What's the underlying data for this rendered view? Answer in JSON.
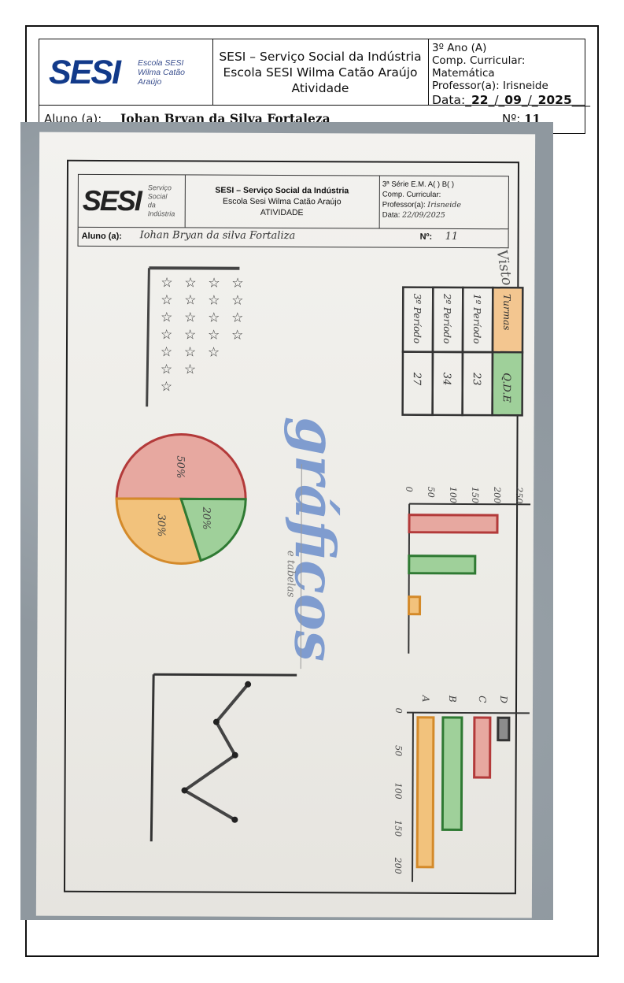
{
  "header": {
    "logo_text": "SESI",
    "logo_sub": [
      "Escola SESI",
      "Wilma Catão",
      "Araújo"
    ],
    "title_lines": [
      "SESI – Serviço Social da Indústria",
      "Escola SESI Wilma Catão Araújo",
      "Atividade"
    ],
    "info": {
      "grade": "3º Ano (A)",
      "subject": "Comp. Curricular: Matemática",
      "teacher": "Professor(a):  Irisneide",
      "date_label": "Data:",
      "date_day": "22",
      "date_month": "09",
      "date_year": "2025"
    }
  },
  "student": {
    "label": "Aluno (a):",
    "name": "Iohan Bryan da Silva Fortaleza",
    "number_label": "Nº:",
    "number": "11"
  },
  "photo": {
    "form": {
      "logo_text": "SESI",
      "logo_sub": [
        "Serviço",
        "Social",
        "da Indústria"
      ],
      "title_lines": [
        "SESI – Serviço Social da Indústria",
        "Escola Sesi Wilma Catão Araújo",
        "ATIVIDADE"
      ],
      "grade": "3ª Série E.M. A(  ) B(  )",
      "subject": "Comp. Curricular:",
      "teacher_label": "Professor(a):",
      "teacher_value": "Irisneide",
      "date_label": "Data:",
      "date_value": "22/09/2025",
      "student_label": "Aluno (a):",
      "student_value": "Iohan Bryan da silva Fortaliza",
      "number_label": "Nº:",
      "number_value": "11",
      "visto": "Visto"
    },
    "big_title": "gráficos",
    "subtitle": "e tabelas",
    "table": {
      "headers": [
        "Turmas",
        "1º Período",
        "2º Período",
        "3º Período"
      ],
      "values": [
        "Q.D.E",
        "23",
        "34",
        "27"
      ]
    },
    "pie": {
      "slices": [
        {
          "label": "50%",
          "value": 50,
          "color": "#e7a8a0"
        },
        {
          "label": "30%",
          "value": 30,
          "color": "#f2c27c"
        },
        {
          "label": "20%",
          "value": 20,
          "color": "#9fd09a"
        }
      ]
    },
    "bar_h": {
      "ticks": [
        "0",
        "50",
        "100",
        "150",
        "200",
        "250"
      ],
      "values": [
        200,
        150,
        25
      ],
      "colors": [
        "#e7a8a0",
        "#9fd09a",
        "#f2c27c"
      ]
    },
    "bar_v": {
      "categories": [
        "A",
        "B",
        "C",
        "D"
      ],
      "ticks": [
        "0",
        "50",
        "100",
        "150",
        "200"
      ],
      "values": [
        200,
        150,
        80,
        30
      ],
      "colors": [
        "#f2c27c",
        "#9fd09a",
        "#e7a8a0",
        "#8c8c8c"
      ]
    },
    "stars_rows": [
      4,
      4,
      4,
      4,
      3,
      2,
      1
    ]
  }
}
